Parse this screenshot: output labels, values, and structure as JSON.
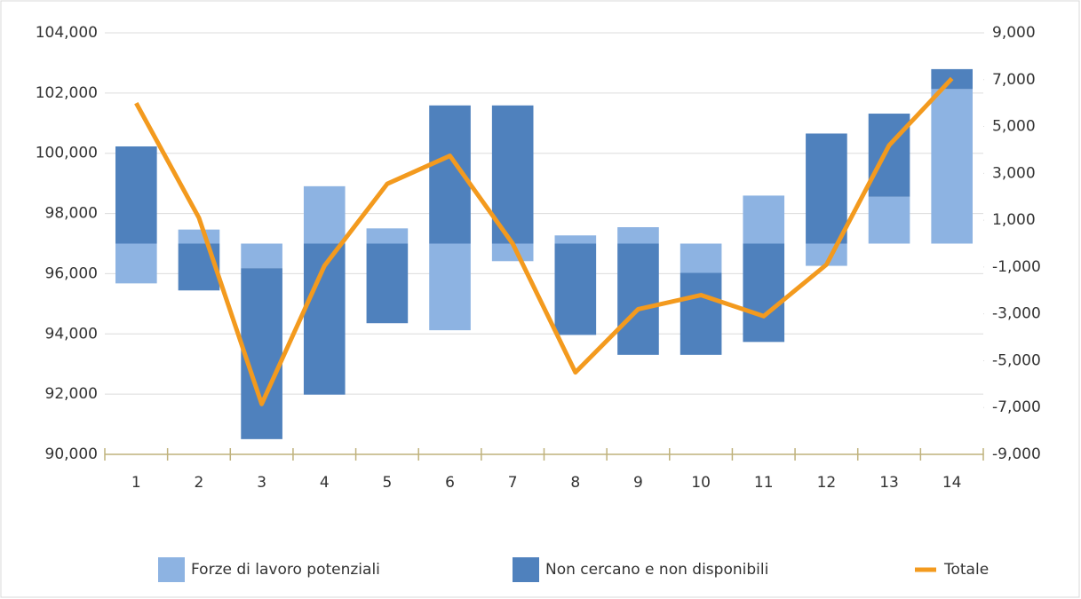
{
  "chart_data": {
    "type": "bar",
    "categories": [
      "1",
      "2",
      "3",
      "4",
      "5",
      "6",
      "7",
      "8",
      "9",
      "10",
      "11",
      "12",
      "13",
      "14"
    ],
    "series": [
      {
        "name": "Forze di lavoro potenziali",
        "type": "bar",
        "axis": "y2",
        "color": "#8db3e2",
        "values": [
          -1700,
          600,
          -1050,
          2450,
          650,
          -3700,
          -750,
          350,
          700,
          -1250,
          2050,
          -950,
          2000,
          6600
        ]
      },
      {
        "name": "Non cercano e non disponibili",
        "type": "bar",
        "axis": "y2",
        "color": "#4f81bd",
        "values": [
          4150,
          -2000,
          -7300,
          -6450,
          -3400,
          5900,
          5900,
          -3900,
          -4750,
          -3500,
          -4200,
          4700,
          3550,
          850
        ]
      },
      {
        "name": "Totale",
        "type": "line",
        "axis": "y2",
        "color": "#f39a1e",
        "values": [
          6000,
          1100,
          -6850,
          -950,
          2550,
          3750,
          0,
          -5500,
          -2800,
          -2200,
          -3100,
          -900,
          4200,
          7050
        ]
      }
    ],
    "stacked": true,
    "ylim": [
      90000,
      104000
    ],
    "yticks": [
      {
        "value": 90000,
        "label": "90,000"
      },
      {
        "value": 92000,
        "label": "92,000"
      },
      {
        "value": 94000,
        "label": "94,000"
      },
      {
        "value": 96000,
        "label": "96,000"
      },
      {
        "value": 98000,
        "label": "98,000"
      },
      {
        "value": 100000,
        "label": "100,000"
      },
      {
        "value": 102000,
        "label": "102,000"
      },
      {
        "value": 104000,
        "label": "104,000"
      }
    ],
    "y2lim": [
      -9000,
      9000
    ],
    "y2ticks": [
      {
        "value": -9000,
        "label": "-9,000"
      },
      {
        "value": -7000,
        "label": "-7,000"
      },
      {
        "value": -5000,
        "label": "-5,000"
      },
      {
        "value": -3000,
        "label": "-3,000"
      },
      {
        "value": -1000,
        "label": "-1,000"
      },
      {
        "value": 1000,
        "label": "1,000"
      },
      {
        "value": 3000,
        "label": "3,000"
      },
      {
        "value": 5000,
        "label": "5,000"
      },
      {
        "value": 7000,
        "label": "7,000"
      },
      {
        "value": 9000,
        "label": "9,000"
      }
    ],
    "grid": true,
    "legend": "bottom"
  }
}
